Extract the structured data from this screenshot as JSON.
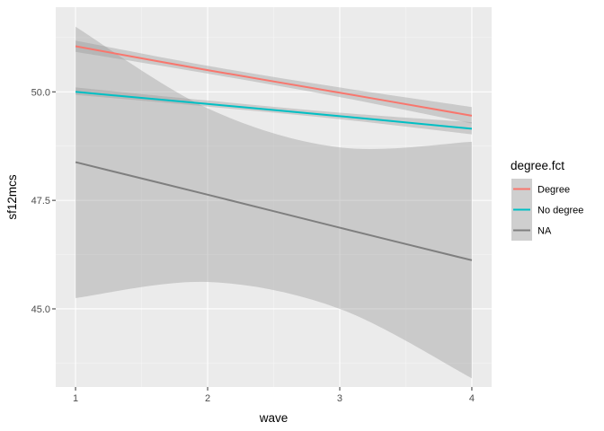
{
  "chart_data": {
    "type": "line",
    "xlabel": "wave",
    "ylabel": "sf12mcs",
    "xlim": [
      0.85,
      4.15
    ],
    "ylim": [
      43.2,
      51.95
    ],
    "x_ticks": [
      1,
      2,
      3,
      4
    ],
    "x_tick_labels": [
      "1",
      "2",
      "3",
      "4"
    ],
    "y_ticks": [
      45.0,
      47.5,
      50.0
    ],
    "y_tick_labels": [
      "45.0",
      "47.5",
      "50.0"
    ],
    "grid": true,
    "legend": {
      "title": "degree.fct",
      "position": "right"
    },
    "series": [
      {
        "name": "Degree",
        "color": "#F8766D",
        "x": [
          1,
          2,
          3,
          4
        ],
        "y": [
          51.05,
          50.5,
          49.98,
          49.45
        ],
        "ci_lower": [
          50.92,
          50.42,
          49.88,
          49.27
        ],
        "ci_upper": [
          51.18,
          50.6,
          50.1,
          49.65
        ]
      },
      {
        "name": "No degree",
        "color": "#00BFC4",
        "x": [
          1,
          2,
          3,
          4
        ],
        "y": [
          50.0,
          49.72,
          49.44,
          49.15
        ],
        "ci_lower": [
          49.93,
          49.66,
          49.37,
          49.02
        ],
        "ci_upper": [
          50.1,
          49.8,
          49.52,
          49.3
        ]
      },
      {
        "name": "NA",
        "color": "#7F7F7F",
        "x": [
          1,
          2,
          3,
          4
        ],
        "y": [
          48.38,
          47.63,
          46.87,
          46.12
        ],
        "ci_lower": [
          45.25,
          45.62,
          45.0,
          43.4
        ],
        "ci_upper": [
          51.5,
          49.62,
          48.72,
          48.85
        ]
      }
    ]
  }
}
